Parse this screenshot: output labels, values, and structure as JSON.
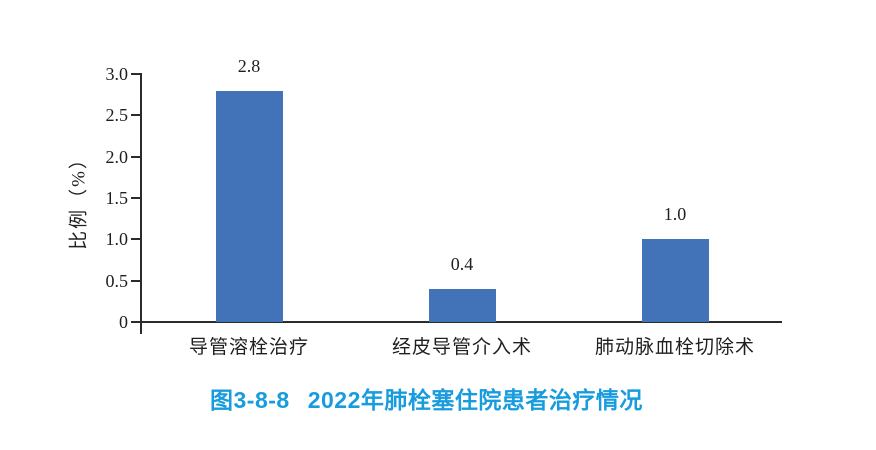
{
  "chart_data": {
    "type": "bar",
    "categories": [
      "导管溶栓治疗",
      "经皮导管介入术",
      "肺动脉血栓切除术"
    ],
    "values": [
      2.8,
      0.4,
      1.0
    ],
    "data_labels": [
      "2.8",
      "0.4",
      "1.0"
    ],
    "xlabel": "",
    "ylabel": "比例（%）",
    "ylim": [
      0,
      3.0
    ],
    "ytick_labels": [
      "0",
      "0.5",
      "1.0",
      "1.5",
      "2.0",
      "2.5",
      "3.0"
    ],
    "grid": false,
    "legend": false,
    "bar_color": "#4273b9",
    "axis_color": "#2b2b2b",
    "text_color": "#1f1f1f"
  },
  "figure": {
    "caption_number": "图3-8-8",
    "caption_title": "2022年肺栓塞住院患者治疗情况",
    "caption_color": "#189cde"
  }
}
